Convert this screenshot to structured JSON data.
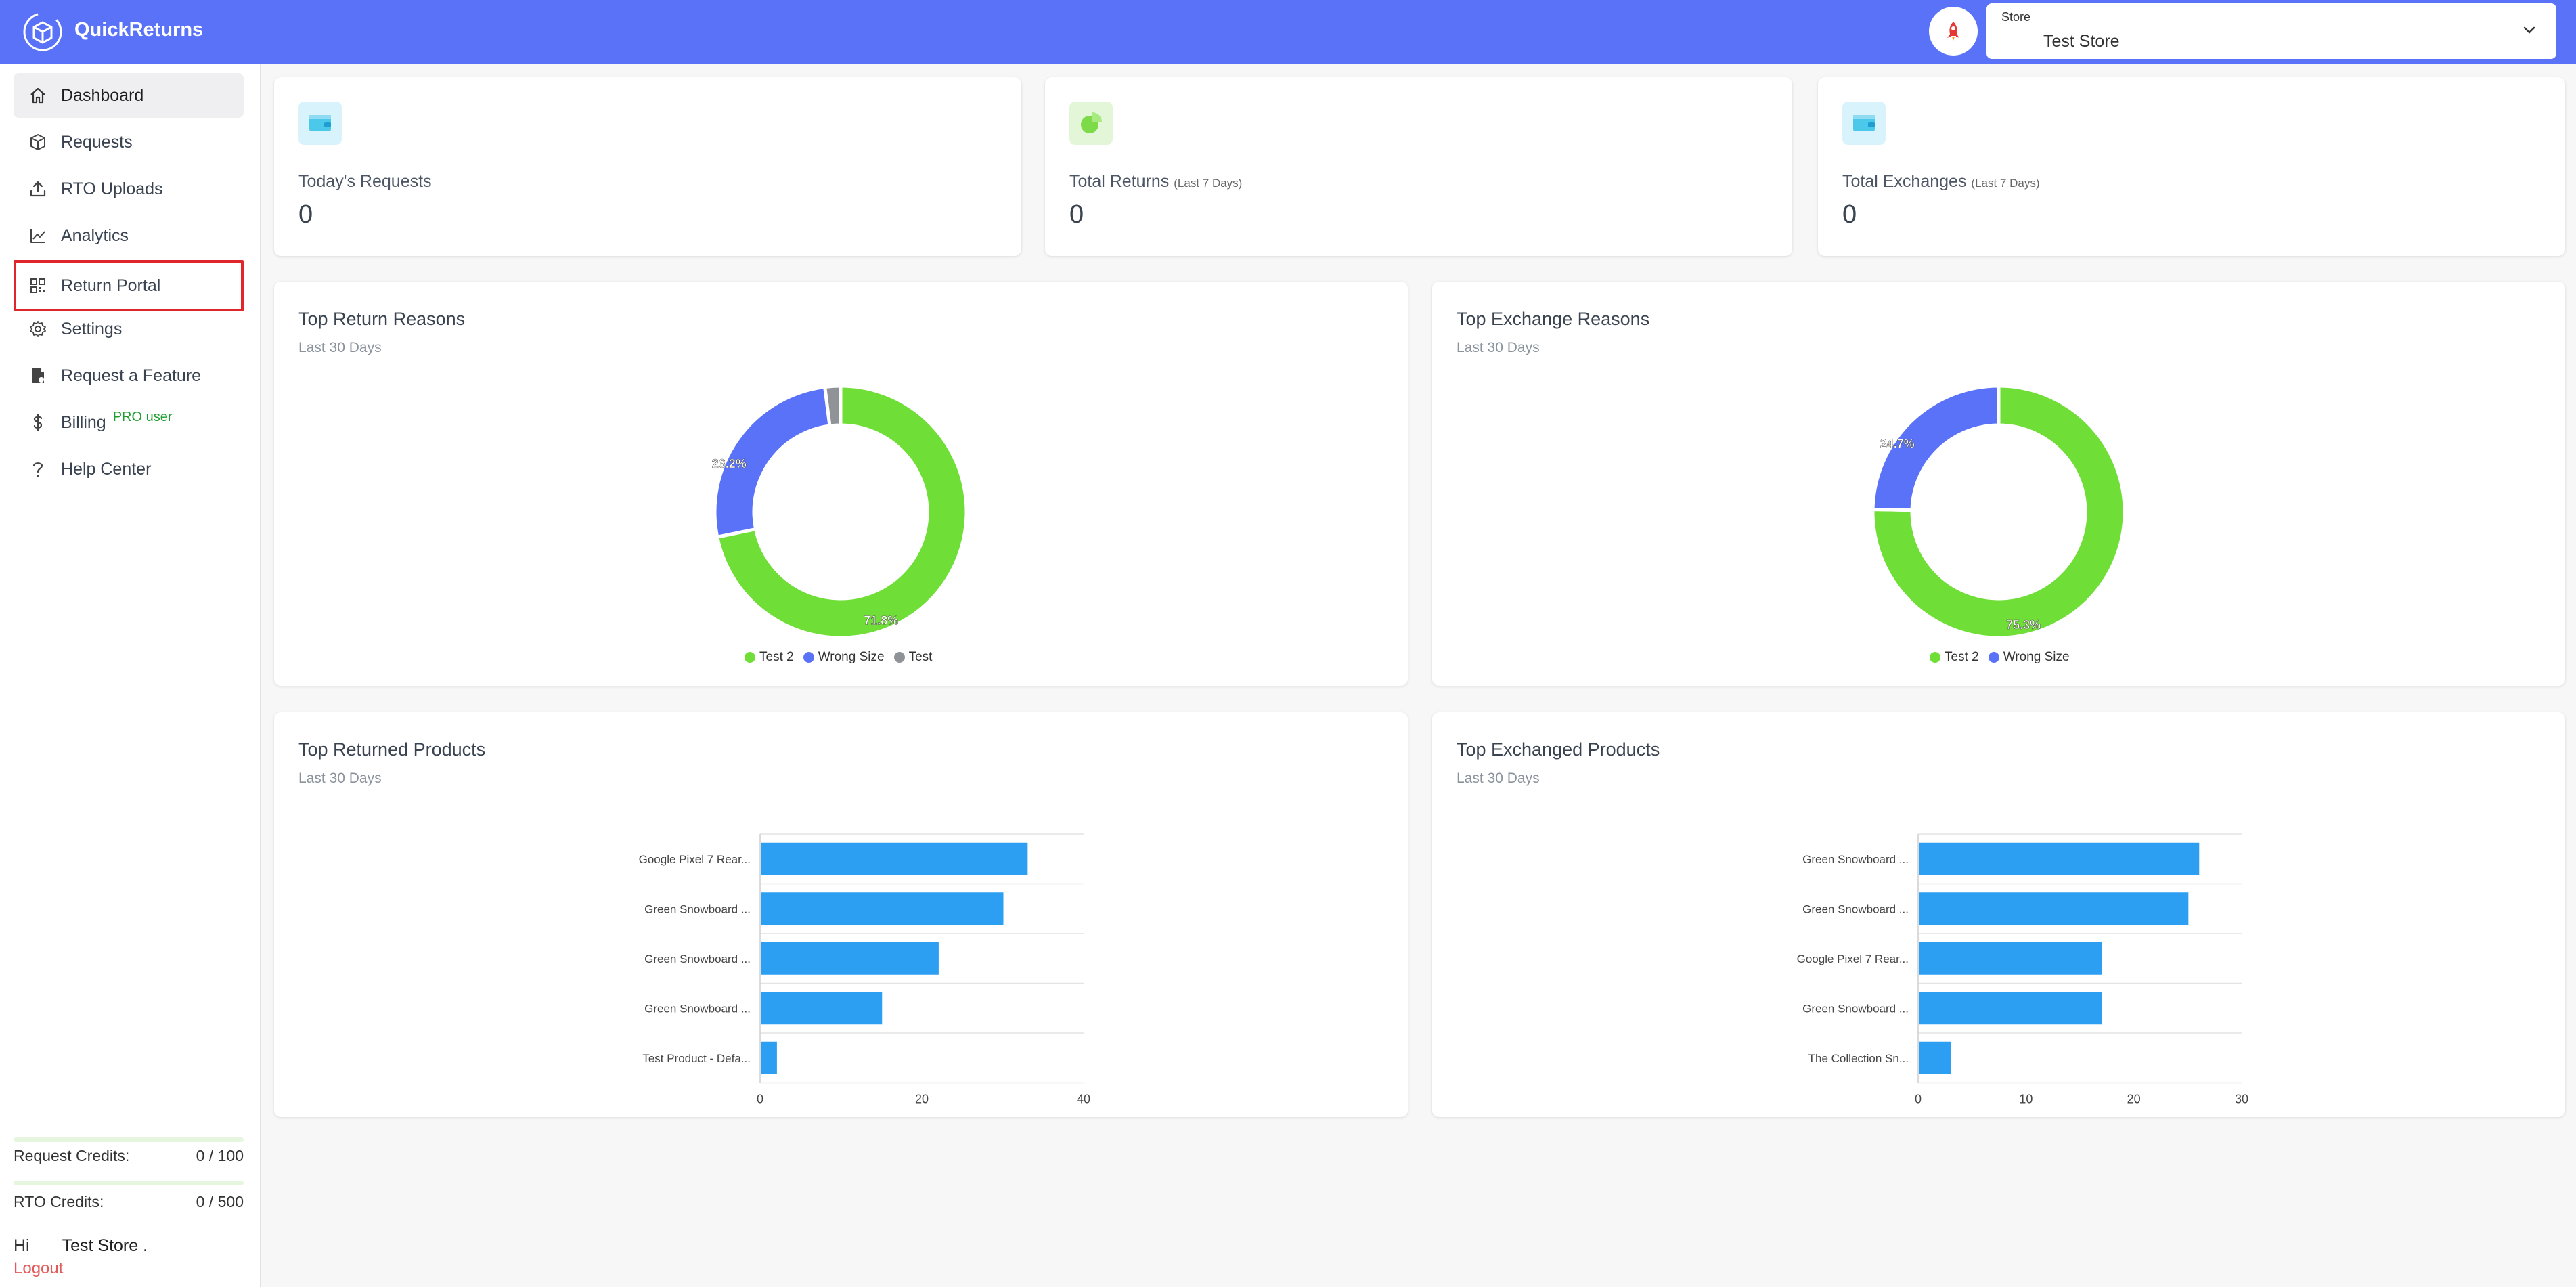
{
  "header": {
    "app_title": "QuickReturns",
    "store_label": "Store",
    "store_value": "Test Store",
    "accent": "#5a72f8"
  },
  "sidebar": {
    "items": [
      {
        "label": "Dashboard",
        "icon": "home-icon"
      },
      {
        "label": "Requests",
        "icon": "box-icon"
      },
      {
        "label": "RTO Uploads",
        "icon": "upload-icon"
      },
      {
        "label": "Analytics",
        "icon": "chart-icon"
      },
      {
        "label": "Return Portal",
        "icon": "qr-grid-icon"
      },
      {
        "label": "Settings",
        "icon": "gear-icon"
      },
      {
        "label": "Request a Feature",
        "icon": "document-icon"
      },
      {
        "label": "Billing",
        "icon": "dollar-icon",
        "badge": "PRO user"
      },
      {
        "label": "Help Center",
        "icon": "question-icon"
      }
    ],
    "credits": [
      {
        "label": "Request Credits:",
        "value": "0 / 100"
      },
      {
        "label": "RTO Credits:",
        "value": "0 / 500"
      }
    ],
    "greeting": "Hi",
    "user_name": "Test Store .",
    "logout": "Logout"
  },
  "stats": [
    {
      "title": "Today's Requests",
      "sub": "",
      "value": "0"
    },
    {
      "title": "Total Returns",
      "sub": "(Last 7 Days)",
      "value": "0"
    },
    {
      "title": "Total Exchanges",
      "sub": "(Last 7 Days)",
      "value": "0"
    }
  ],
  "panels": {
    "return_reasons": {
      "title": "Top Return Reasons",
      "sub": "Last 30 Days"
    },
    "exchange_reasons": {
      "title": "Top Exchange Reasons",
      "sub": "Last 30 Days"
    },
    "returned_products": {
      "title": "Top Returned Products",
      "sub": "Last 30 Days"
    },
    "exchanged_products": {
      "title": "Top Exchanged Products",
      "sub": "Last 30 Days"
    }
  },
  "chart_data": [
    {
      "type": "pie",
      "variant": "donut",
      "title": "Top Return Reasons",
      "categories": [
        "Test 2",
        "Wrong Size",
        "Test"
      ],
      "values": [
        71.8,
        26.2,
        2.0
      ],
      "data_labels": [
        "71.8%",
        "26.2%",
        ""
      ],
      "colors": [
        "#6fde36",
        "#5a72f8",
        "#8f9297"
      ],
      "legend": "bottom"
    },
    {
      "type": "pie",
      "variant": "donut",
      "title": "Top Exchange Reasons",
      "categories": [
        "Test 2",
        "Wrong Size"
      ],
      "values": [
        75.3,
        24.7
      ],
      "data_labels": [
        "75.3%",
        "24.7%"
      ],
      "colors": [
        "#6fde36",
        "#5a72f8"
      ],
      "legend": "bottom"
    },
    {
      "type": "bar",
      "orientation": "horizontal",
      "title": "Top Returned Products",
      "categories": [
        "Google Pixel 7 Rear...",
        "Green Snowboard ...",
        "Green Snowboard ...",
        "Green Snowboard ...",
        "Test Product - Defa..."
      ],
      "values": [
        33,
        30,
        22,
        15,
        2
      ],
      "xlim": [
        0,
        40
      ],
      "xticks": [
        0,
        20,
        40
      ],
      "color": "#2d9ff3",
      "grid": true
    },
    {
      "type": "bar",
      "orientation": "horizontal",
      "title": "Top Exchanged Products",
      "categories": [
        "Green Snowboard ...",
        "Green Snowboard ...",
        "Google Pixel 7 Rear...",
        "Green Snowboard ...",
        "The Collection Sn..."
      ],
      "values": [
        26,
        25,
        17,
        17,
        3
      ],
      "xlim": [
        0,
        30
      ],
      "xticks": [
        0,
        10,
        20,
        30
      ],
      "color": "#2d9ff3",
      "grid": true
    }
  ]
}
